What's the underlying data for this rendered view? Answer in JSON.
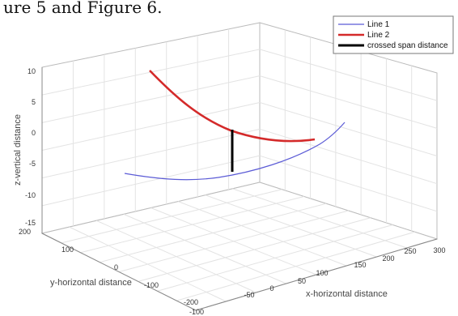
{
  "caption_fragment": "ure 5 and Figure 6.",
  "chart_data": {
    "type": "line",
    "title": "",
    "xlabel": "x-horizontal distance",
    "ylabel": "y-horizontal distance",
    "zlabel": "z-vertical distance",
    "x_ticks": [
      "-100",
      "-50",
      "0",
      "50",
      "100",
      "150",
      "200",
      "250",
      "300"
    ],
    "y_ticks": [
      "200",
      "100",
      "0",
      "-100",
      "-200"
    ],
    "z_ticks": [
      "10",
      "5",
      "0",
      "-5",
      "-10",
      "-15"
    ],
    "xlim": [
      -100,
      300
    ],
    "ylim": [
      -200,
      200
    ],
    "zlim": [
      -15,
      10
    ],
    "grid": true,
    "legend_position": "top-right",
    "series": [
      {
        "name": "Line 1",
        "color": "#5b5bd6"
      },
      {
        "name": "Line 2",
        "color": "#d42a2a"
      },
      {
        "name": "crossed span distance",
        "color": "#000000"
      }
    ]
  }
}
